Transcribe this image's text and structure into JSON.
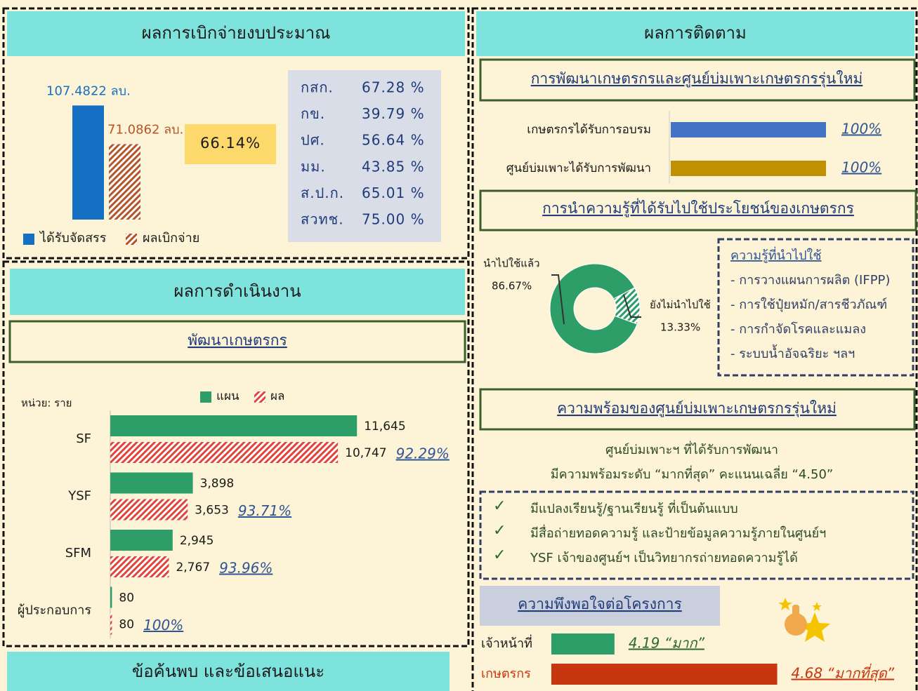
{
  "budget": {
    "title": "ผลการเบิกจ่ายงบประมาณ",
    "chart": {
      "type": "bar",
      "series": [
        {
          "name": "ได้รับจัดสรร",
          "color": "#1570c4",
          "values": [
            107.4822
          ],
          "value_labels": [
            "107.4822 ลบ."
          ]
        },
        {
          "name": "ผลเบิกจ่าย",
          "color": "#b5562a",
          "values": [
            71.0862
          ],
          "value_labels": [
            "71.0862 ลบ."
          ]
        }
      ],
      "ylim": [
        0,
        115
      ]
    },
    "rate": "66.14%",
    "table": {
      "rows": [
        [
          "กสก.",
          "67.28 %"
        ],
        [
          "กข.",
          "39.79 %"
        ],
        [
          "ปศ.",
          "56.64 %"
        ],
        [
          "มม.",
          "43.85 %"
        ],
        [
          "ส.ป.ก.",
          "65.01 %"
        ],
        [
          "สวทช.",
          "75.00 %"
        ]
      ]
    }
  },
  "performance": {
    "title": "ผลการดำเนินงาน",
    "subtitle": "พัฒนาเกษตรกร",
    "chart": {
      "type": "bar",
      "orientation": "horizontal",
      "unit_label": "หน่วย: ราย",
      "categories": [
        "SF",
        "YSF",
        "SFM",
        "ผู้ประกอบการ"
      ],
      "series": [
        {
          "name": "แผน",
          "color": "#2e9e68",
          "values": [
            11645,
            3898,
            2945,
            80
          ],
          "value_labels": [
            "11,645",
            "3,898",
            "2,945",
            "80"
          ]
        },
        {
          "name": "ผล",
          "color": "#e0453a",
          "values": [
            10747,
            3653,
            2767,
            80
          ],
          "value_labels": [
            "10,747",
            "3,653",
            "2,767",
            "80"
          ]
        }
      ],
      "xlim": [
        0,
        12500
      ]
    },
    "achievement": [
      "92.29%",
      "93.71%",
      "93.96%",
      "100%"
    ]
  },
  "findings": {
    "title": "ข้อค้นพบ และข้อเสนอแนะ"
  },
  "monitoring": {
    "title": "ผลการติดตาม",
    "development": {
      "heading": "การพัฒนาเกษตรกรและศูนย์บ่มเพาะเกษตรกรรุ่นใหม่",
      "chart": {
        "type": "bar",
        "orientation": "horizontal",
        "categories": [
          "เกษตรกรได้รับการอบรม",
          "ศูนย์บ่มเพาะได้รับการพัฒนา"
        ],
        "values": [
          100,
          100
        ],
        "value_labels": [
          "100%",
          "100%"
        ],
        "colors": [
          "#4472c4",
          "#bf9000"
        ],
        "xlim": [
          0,
          100
        ]
      }
    },
    "knowledge": {
      "heading": "การนำความรู้ที่ได้รับไปใช้ประโยชน์ของเกษตรกร",
      "chart": {
        "type": "pie",
        "categories": [
          "นำไปใช้แล้ว",
          "ยังไม่นำไปใช้"
        ],
        "values": [
          86.67,
          13.33
        ],
        "value_labels": [
          "86.67%",
          "13.33%"
        ],
        "color": "#2e9e68"
      },
      "applied": {
        "title": "ความรู้ที่นำไปใช้",
        "items": [
          "- การวางแผนการผลิต (IFPP)",
          "- การใช้ปุ๋ยหมัก/สารชีวภัณฑ์",
          "- การกำจัดโรคและแมลง",
          "- ระบบน้ำอัจฉริยะ ฯลฯ"
        ]
      }
    },
    "readiness": {
      "heading": "ความพร้อมของศูนย์บ่มเพาะเกษตรกรรุ่นใหม่",
      "lines": [
        "ศูนย์บ่มเพาะฯ ที่ได้รับการพัฒนา",
        "มีความพร้อมระดับ “มากที่สุด” คะแนนเฉลี่ย “4.50”"
      ],
      "checks": [
        "มีแปลงเรียนรู้/ฐานเรียนรู้ ที่เป็นต้นแบบ",
        "มีสื่อถ่ายทอดความรู้ และป้ายข้อมูลความรู้ภายในศูนย์ฯ",
        "YSF เจ้าของศูนย์ฯ เป็นวิทยากรถ่ายทอดความรู้ได้"
      ]
    },
    "satisfaction": {
      "heading": "ความพึงพอใจต่อโครงการ",
      "chart": {
        "type": "bar",
        "orientation": "horizontal",
        "categories": [
          "เจ้าหน้าที่",
          "เกษตรกร"
        ],
        "values": [
          4.19,
          4.68
        ],
        "value_labels": [
          "4.19 “มาก”",
          "4.68 “มากที่สุด”"
        ],
        "colors": [
          "#2e9e68",
          "#c8360f"
        ],
        "label_colors": [
          "#2a6a2a",
          "#c8360f"
        ],
        "xlim": [
          4,
          4.7
        ]
      }
    }
  }
}
